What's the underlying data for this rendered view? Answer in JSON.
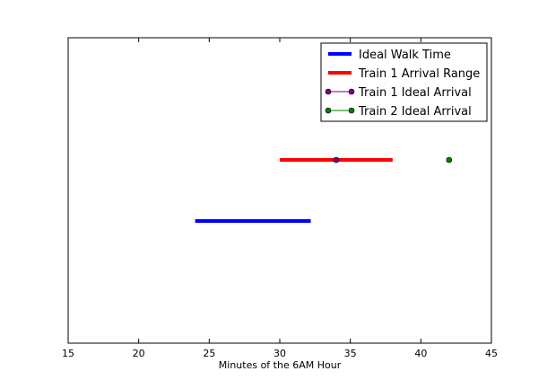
{
  "chart_data": {
    "type": "line",
    "title": "",
    "xlabel": "Minutes of the 6AM Hour",
    "ylabel": "",
    "xlim": [
      15,
      45
    ],
    "ylim": [
      0,
      1
    ],
    "xticks": [
      15,
      20,
      25,
      30,
      35,
      40,
      45
    ],
    "yticks": [],
    "grid": false,
    "legend_position": "top-right",
    "series": [
      {
        "name": "Ideal Walk Time",
        "kind": "range",
        "color": "#0000ff",
        "x": [
          24,
          32.2
        ],
        "y": 0.4
      },
      {
        "name": "Train 1 Arrival Range",
        "kind": "range",
        "color": "#ff0000",
        "x": [
          30,
          38
        ],
        "y": 0.6
      },
      {
        "name": "Train 1 Ideal Arrival",
        "kind": "point",
        "color": "#800080",
        "x": 34,
        "y": 0.6
      },
      {
        "name": "Train 2 Ideal Arrival",
        "kind": "point",
        "color": "#008000",
        "x": 42,
        "y": 0.6
      }
    ]
  }
}
